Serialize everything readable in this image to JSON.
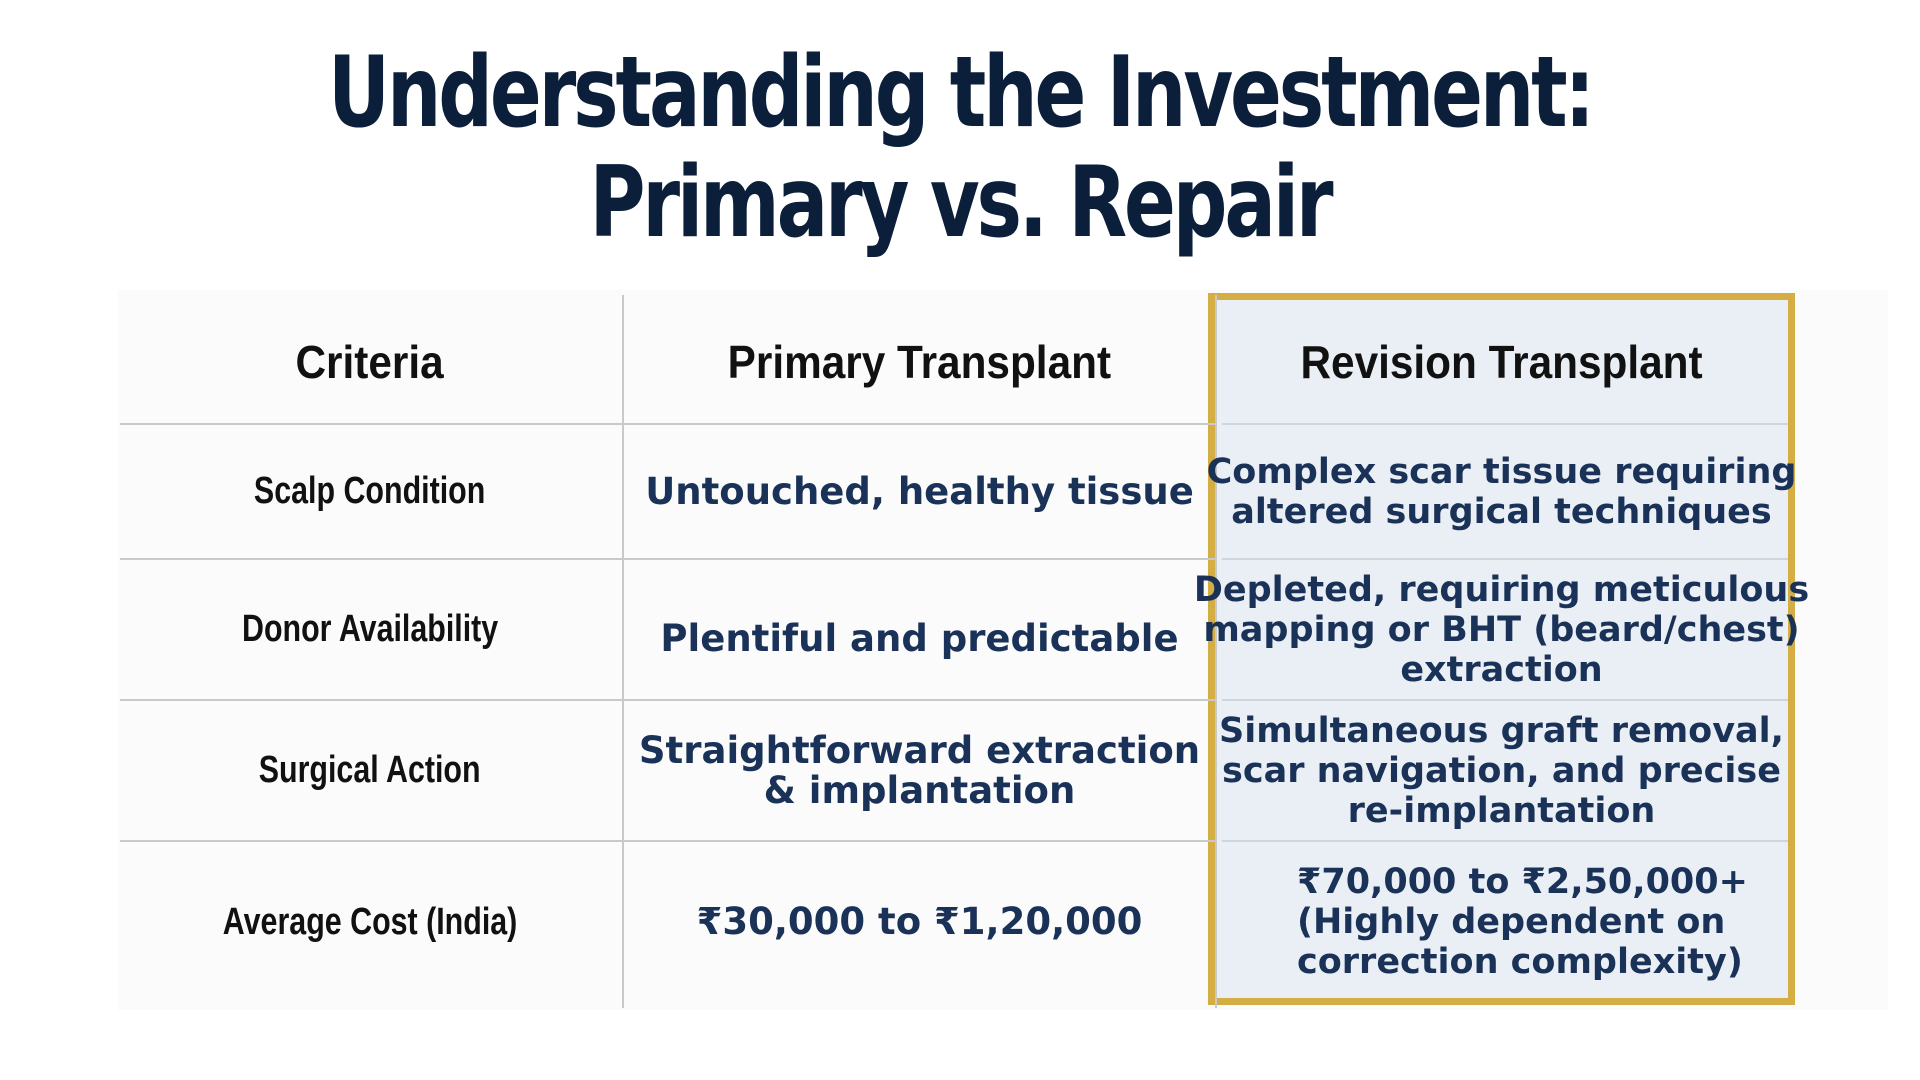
{
  "title": {
    "line1": "Understanding the Investment:",
    "line2": "Primary vs. Repair"
  },
  "table": {
    "headers": {
      "criteria": "Criteria",
      "primary": "Primary Transplant",
      "revision": "Revision Transplant"
    },
    "rows": [
      {
        "criteria": "Scalp Condition",
        "primary": [
          "Untouched, healthy tissue"
        ],
        "revision": [
          "Complex scar tissue requiring",
          "altered surgical techniques"
        ]
      },
      {
        "criteria": "Donor Availability",
        "primary": [
          "Plentiful and predictable"
        ],
        "revision": [
          "Depleted, requiring meticulous",
          "mapping or BHT (beard/chest)",
          "extraction"
        ]
      },
      {
        "criteria": "Surgical Action",
        "primary": [
          "Straightforward extraction",
          "& implantation"
        ],
        "revision": [
          "Simultaneous graft removal,",
          "scar navigation, and precise",
          "re-implantation"
        ]
      },
      {
        "criteria": "Average Cost (India)",
        "primary": [
          "₹30,000 to ₹1,20,000"
        ],
        "revision": [
          "₹70,000 to ₹2,50,000+",
          "(Highly dependent on",
          "correction complexity)"
        ]
      }
    ]
  },
  "colors": {
    "title": "#0b1f3a",
    "value_text": "#1a3258",
    "highlight_border": "#d4ad45",
    "highlight_fill": "#eaeff5"
  }
}
